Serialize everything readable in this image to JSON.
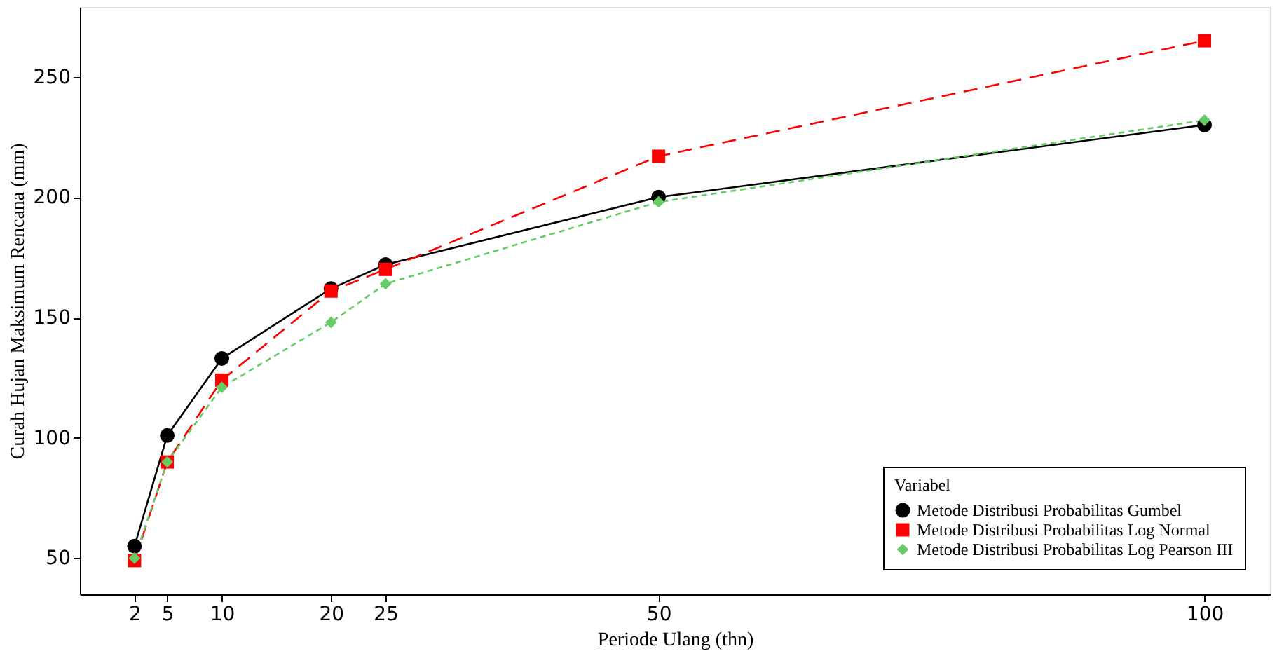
{
  "chart_data": {
    "type": "line",
    "xlabel": "Periode Ulang (thn)",
    "ylabel": "Curah Hujan Maksimum Rencana (mm)",
    "legend_title": "Variabel",
    "legend": "bottom right",
    "grid": false,
    "x": [
      2,
      5,
      10,
      20,
      25,
      50,
      100
    ],
    "xlim": [
      -3,
      106
    ],
    "xticks": [
      2,
      5,
      10,
      20,
      25,
      50,
      100
    ],
    "ylim": [
      35,
      279
    ],
    "yticks": [
      50,
      100,
      150,
      200,
      250
    ],
    "series": [
      {
        "name": "Metode Distribusi Probabilitas Gumbel",
        "color": "#000000",
        "marker": "circle",
        "line_style": "solid",
        "values": [
          55,
          101,
          133,
          162,
          172,
          200,
          230
        ]
      },
      {
        "name": "Metode Distribusi Probabilitas Log Normal",
        "color": "#ff0000",
        "marker": "square",
        "line_style": "dashed",
        "values": [
          49,
          90,
          124,
          161,
          170,
          217,
          265
        ]
      },
      {
        "name": "Metode Distribusi Probabilitas Log Pearson III",
        "color": "#66cc66",
        "marker": "diamond",
        "line_style": "dotted",
        "values": [
          50,
          90,
          121,
          148,
          164,
          198,
          232
        ]
      }
    ]
  }
}
